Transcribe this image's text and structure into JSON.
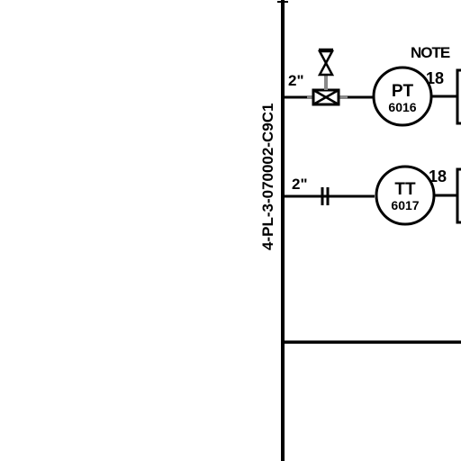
{
  "pipeline": {
    "line_number": "4-PL-3-070002-C9C1"
  },
  "notes": {
    "note_label": "NOTE"
  },
  "branches": [
    {
      "size": "2\"",
      "instrument": {
        "function": "PT",
        "tag": "6016"
      },
      "note_ref": "18"
    },
    {
      "size": "2\"",
      "instrument": {
        "function": "TT",
        "tag": "6017"
      },
      "note_ref": "18"
    }
  ]
}
